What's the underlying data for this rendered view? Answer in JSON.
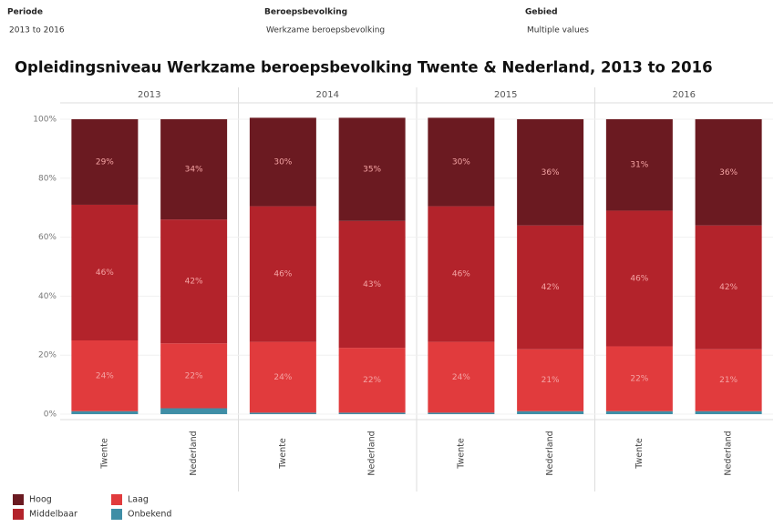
{
  "filters": [
    {
      "label": "Periode",
      "value": "2013 to 2016"
    },
    {
      "label": "Beroepsbevolking",
      "value": "Werkzame beroepsbevolking"
    },
    {
      "label": "Gebied",
      "value": "Multiple values"
    }
  ],
  "chart_data": {
    "type": "stacked_bar",
    "title": "Opleidingsniveau Werkzame beroepsbevolking Twente & Nederland, 2013 to 2016",
    "groups": [
      "2013",
      "2014",
      "2015",
      "2016"
    ],
    "categories": [
      "Twente",
      "Nederland",
      "Twente",
      "Nederland",
      "Twente",
      "Nederland",
      "Twente",
      "Nederland"
    ],
    "series": [
      {
        "name": "Hoog",
        "color": "#6b1a21",
        "values": [
          29,
          34,
          30,
          35,
          30,
          36,
          31,
          36
        ],
        "value_labels": [
          "29%",
          "34%",
          "30%",
          "35%",
          "30%",
          "36%",
          "31%",
          "36%"
        ]
      },
      {
        "name": "Middelbaar",
        "color": "#b3232b",
        "values": [
          46,
          42,
          46,
          43,
          46,
          42,
          46,
          42
        ],
        "value_labels": [
          "46%",
          "42%",
          "46%",
          "43%",
          "46%",
          "42%",
          "46%",
          "42%"
        ]
      },
      {
        "name": "Laag",
        "color": "#e13b3d",
        "values": [
          24,
          22,
          24,
          22,
          24,
          21,
          22,
          21
        ],
        "value_labels": [
          "24%",
          "22%",
          "24%",
          "22%",
          "24%",
          "21%",
          "22%",
          "21%"
        ]
      },
      {
        "name": "Onbekend",
        "color": "#3f8ea6",
        "values": [
          1,
          2,
          0.5,
          0.5,
          0.5,
          1,
          1,
          1
        ]
      }
    ],
    "ylim": [
      0,
      100
    ],
    "yticks": [
      {
        "value": 0,
        "label": "0%"
      },
      {
        "value": 20,
        "label": "20%"
      },
      {
        "value": 40,
        "label": "40%"
      },
      {
        "value": 60,
        "label": "60%"
      },
      {
        "value": 80,
        "label": "80%"
      },
      {
        "value": 100,
        "label": "100%"
      }
    ],
    "grid": true
  }
}
